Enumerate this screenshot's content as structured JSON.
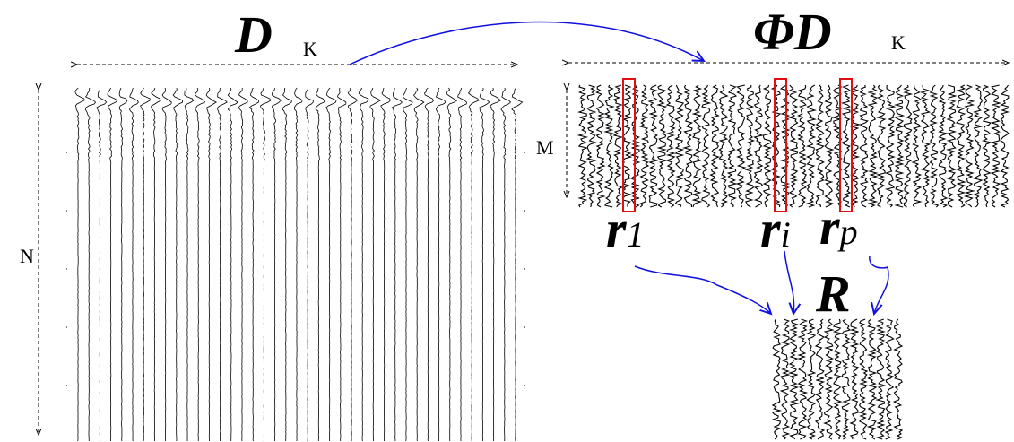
{
  "left_panel": {
    "label": "D",
    "subscript": "K",
    "side_label": "N"
  },
  "right_panel": {
    "label": "ΦD",
    "subscript": "K",
    "side_label": "M"
  },
  "selected_columns": [
    {
      "base": "r",
      "index": "1"
    },
    {
      "base": "r",
      "index": "i"
    },
    {
      "base": "r",
      "index": "p"
    }
  ],
  "result": {
    "label": "R"
  }
}
